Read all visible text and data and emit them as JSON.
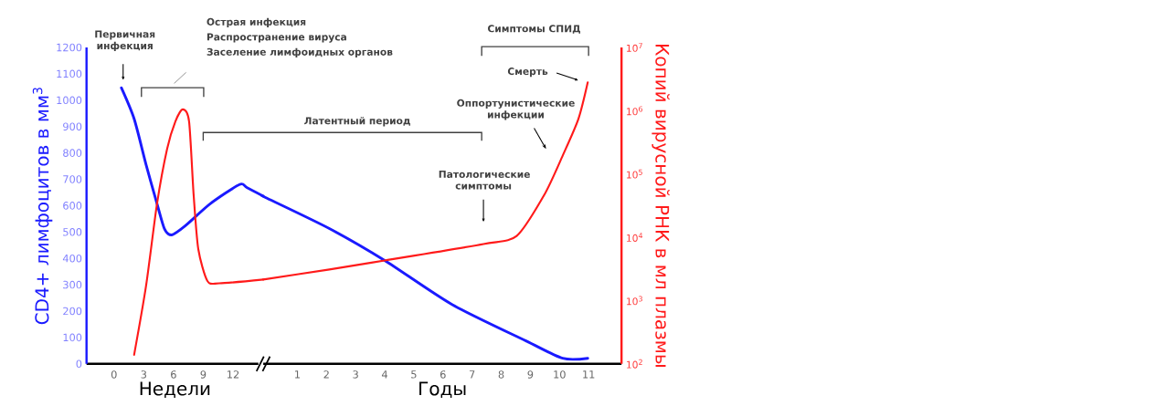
{
  "chart_data": [
    {
      "type": "line",
      "xlabel": "Недели",
      "ylabel": "CD4+ лимфоцитов в мм$^{3}$",
      "xlim": [
        -2.77,
        15.05
      ],
      "xticks": [
        0,
        3,
        6,
        9,
        12
      ],
      "ylim": [
        0,
        1200
      ],
      "yticks": [
        0,
        100,
        200,
        300,
        400,
        500,
        600,
        700,
        800,
        900,
        1000,
        1100,
        1200
      ],
      "y2lim": [
        100,
        10000000
      ],
      "log": "y2",
      "line_style": "solid",
      "series": [
        {
          "color": "#1a1aff",
          "x": [
            0.74,
            2.03,
            3.23,
            4.34,
            5.08,
            5.82,
            7.2,
            9.7,
            12.65,
            13.39,
            15.05
          ],
          "values": [
            1047,
            929,
            756,
            607,
            513,
            489,
            524,
            607,
            680,
            669,
            636
          ]
        },
        {
          "color": "#ff1a1a",
          "axis": "y2",
          "x": [
            2.03,
            3.23,
            4.34,
            5.36,
            6.19,
            6.93,
            7.57,
            8.03,
            8.5,
            9.42,
            10.62,
            15.05
          ],
          "values": [
            139,
            1700,
            34000,
            250000,
            676000,
            1050000,
            676000,
            47000,
            6500,
            2040,
            1870,
            2150
          ]
        }
      ],
      "annotations": [
        "Первичная инфекция",
        "Острая инфекция",
        "Распространение вируса",
        "Заселение лимфоидных органов"
      ]
    },
    {
      "type": "line",
      "xlabel": "Годы",
      "y2label": "Копий вирусной РНК в мл плазмы",
      "xlim": [
        -0.17,
        12.13
      ],
      "xticks": [
        1,
        2,
        3,
        4,
        5,
        6,
        7,
        8,
        9,
        10,
        11
      ],
      "ylim": [
        0,
        1200
      ],
      "y2lim": [
        100,
        10000000
      ],
      "y2ticks": [
        {
          "value": 100,
          "label": "10$^{2}$"
        },
        {
          "value": 1000,
          "label": "10$^{3}$"
        },
        {
          "value": 10000,
          "label": "10$^{4}$"
        },
        {
          "value": 100000,
          "label": "10$^{5}$"
        },
        {
          "value": 1000000,
          "label": "10$^{6}$"
        },
        {
          "value": 10000000,
          "label": "10$^{7}$"
        }
      ],
      "log": "y2",
      "line_style": "solid",
      "series": [
        {
          "color": "#1a1aff",
          "x": [
            -0.17,
            -0.04,
            2.1,
            4.0,
            6.31,
            8.85,
            10.11,
            10.97
          ],
          "values": [
            636,
            628,
            513,
            392,
            225,
            87,
            21,
            21
          ]
        },
        {
          "color": "#ff1a1a",
          "axis": "y2",
          "x": [
            -0.17,
            2.1,
            4.0,
            7.39,
            8.53,
            9.48,
            10.11,
            10.65,
            10.97
          ],
          "values": [
            2150,
            3100,
            4300,
            7800,
            10500,
            47000,
            195000,
            740000,
            2800000
          ]
        }
      ],
      "annotations": [
        "Латентный период",
        "Симптомы СПИД",
        "Смерть",
        "Оппортунистические инфекции",
        "Патологические симптомы"
      ]
    }
  ]
}
